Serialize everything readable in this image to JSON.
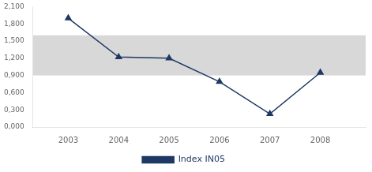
{
  "chart_data": {
    "type": "line",
    "x": [
      2003,
      2004,
      2005,
      2006,
      2007,
      2008
    ],
    "series": [
      {
        "name": "Index IN05",
        "color": "#1F3864",
        "marker": "triangle",
        "values": [
          1.898,
          1.22,
          1.2,
          0.79,
          0.23,
          0.95
        ]
      }
    ],
    "xlim": [
      2002.3,
      2008.9
    ],
    "xticks": [
      2003,
      2004,
      2005,
      2006,
      2007,
      2008
    ],
    "ylim": [
      0.0,
      2.1
    ],
    "yticks": [
      {
        "value": 0.0,
        "label": "0,000"
      },
      {
        "value": 0.3,
        "label": "0,300"
      },
      {
        "value": 0.6,
        "label": "0,600"
      },
      {
        "value": 0.9,
        "label": "0,900"
      },
      {
        "value": 1.2,
        "label": "1,200"
      },
      {
        "value": 1.5,
        "label": "1,500"
      },
      {
        "value": 1.8,
        "label": "1,800"
      },
      {
        "value": 2.1,
        "label": "2,100"
      }
    ],
    "band": {
      "ymin": 0.9,
      "ymax": 1.6,
      "color": "#D8D8D8"
    },
    "grid": false,
    "legend": "bottom"
  }
}
